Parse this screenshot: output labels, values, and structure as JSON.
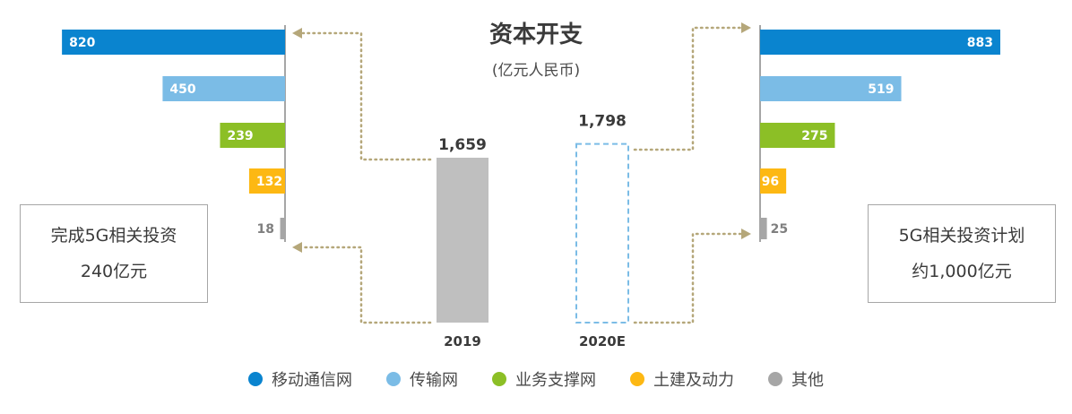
{
  "chart_data": {
    "type": "bar",
    "title": "资本开支",
    "subtitle": "(亿元人民币)",
    "totals": [
      {
        "category": "2019",
        "value": 1659,
        "label": "1,659"
      },
      {
        "category": "2020E",
        "value": 1798,
        "label": "1,798"
      }
    ],
    "breakdown_2019": [
      {
        "series": "移动通信网",
        "value": 820
      },
      {
        "series": "传输网",
        "value": 450
      },
      {
        "series": "业务支撑网",
        "value": 239
      },
      {
        "series": "土建及动力",
        "value": 132
      },
      {
        "series": "其他",
        "value": 18
      }
    ],
    "breakdown_2020E": [
      {
        "series": "移动通信网",
        "value": 883
      },
      {
        "series": "传输网",
        "value": 519
      },
      {
        "series": "业务支撑网",
        "value": 275
      },
      {
        "series": "土建及动力",
        "value": 96
      },
      {
        "series": "其他",
        "value": 25
      }
    ],
    "legend": [
      "移动通信网",
      "传输网",
      "业务支撑网",
      "土建及动力",
      "其他"
    ],
    "colors": {
      "移动通信网": "#0a84cf",
      "传输网": "#7bbce6",
      "业务支撑网": "#8cbf26",
      "土建及动力": "#fdb813",
      "其他": "#a6a6a6",
      "total_2019": "#bfbfbf",
      "projected_outline": "#7bbce6",
      "connector": "#b5a77a"
    }
  },
  "notes": {
    "left": {
      "line1": "完成5G相关投资",
      "line2": "240亿元"
    },
    "right": {
      "line1": "5G相关投资计划",
      "line2": "约1,000亿元"
    }
  }
}
